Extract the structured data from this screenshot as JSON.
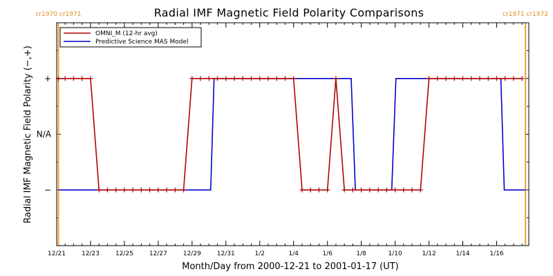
{
  "chart_data": {
    "type": "line",
    "title": "Radial IMF Magnetic Field Polarity Comparisons",
    "xlabel": "Month/Day from 2000-12-21 to 2001-01-17 (UT)",
    "ylabel": "Radial IMF Magnetic Field Polarity (−,+)",
    "x_unit": "days since 2000-12-21 00:00 UT",
    "xlim": [
      0,
      27.9
    ],
    "ylim": [
      -2,
      2
    ],
    "y_ticks": [
      {
        "value": 1,
        "label": "+"
      },
      {
        "value": 0,
        "label": "N/A"
      },
      {
        "value": -1,
        "label": "−"
      }
    ],
    "x_ticks": [
      {
        "value": 0,
        "label": "12/21"
      },
      {
        "value": 2,
        "label": "12/23"
      },
      {
        "value": 4,
        "label": "12/25"
      },
      {
        "value": 6,
        "label": "12/27"
      },
      {
        "value": 8,
        "label": "12/29"
      },
      {
        "value": 10,
        "label": "12/31"
      },
      {
        "value": 12,
        "label": "1/2"
      },
      {
        "value": 14,
        "label": "1/4"
      },
      {
        "value": 16,
        "label": "1/6"
      },
      {
        "value": 18,
        "label": "1/8"
      },
      {
        "value": 20,
        "label": "1/10"
      },
      {
        "value": 22,
        "label": "1/12"
      },
      {
        "value": 24,
        "label": "1/14"
      },
      {
        "value": 26,
        "label": "1/16"
      }
    ],
    "carrington_markers": [
      {
        "x": 0.1,
        "label": "cr1970 cr1971"
      },
      {
        "x": 27.7,
        "label": "cr1971 cr1972"
      }
    ],
    "legend_position": "top-left",
    "series": [
      {
        "name": "OMNI_M (12-hr avg)",
        "color": "#b00000",
        "markers": "plus",
        "x": [
          0.1,
          0.5,
          1.0,
          1.5,
          2.0,
          2.5,
          3.0,
          3.5,
          4.0,
          4.5,
          5.0,
          5.5,
          6.0,
          6.5,
          7.0,
          7.5,
          8.0,
          8.5,
          9.0,
          9.5,
          10.0,
          10.5,
          11.0,
          11.5,
          12.0,
          12.5,
          13.0,
          13.5,
          14.0,
          14.5,
          15.0,
          15.5,
          16.0,
          16.5,
          17.0,
          17.5,
          18.0,
          18.5,
          19.0,
          19.5,
          20.0,
          20.5,
          21.0,
          21.5,
          22.0,
          22.5,
          23.0,
          23.5,
          24.0,
          24.5,
          25.0,
          25.5,
          26.0,
          26.5,
          27.0,
          27.5
        ],
        "y": [
          1,
          1,
          1,
          1,
          1,
          -1,
          -1,
          -1,
          -1,
          -1,
          -1,
          -1,
          -1,
          -1,
          -1,
          -1,
          1,
          1,
          1,
          1,
          1,
          1,
          1,
          1,
          1,
          1,
          1,
          1,
          1,
          -1,
          -1,
          -1,
          -1,
          1,
          -1,
          -1,
          -1,
          -1,
          -1,
          -1,
          -1,
          -1,
          -1,
          -1,
          1,
          1,
          1,
          1,
          1,
          1,
          1,
          1,
          1,
          1,
          1,
          1
        ]
      },
      {
        "name": "Predictive Science MAS Model",
        "color": "#0000cc",
        "markers": "none",
        "x": [
          0.1,
          9.1,
          9.3,
          17.4,
          17.65,
          19.8,
          20.05,
          26.25,
          26.45,
          27.7
        ],
        "y": [
          -1,
          -1,
          1,
          1,
          -1,
          -1,
          1,
          1,
          -1,
          -1
        ]
      }
    ]
  }
}
